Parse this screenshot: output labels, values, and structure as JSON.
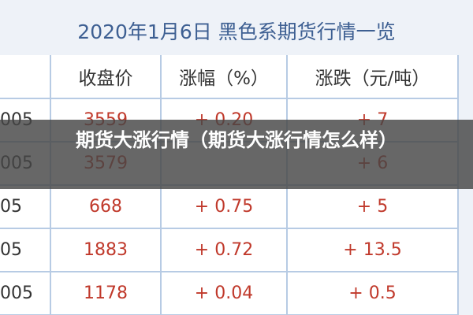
{
  "header": {
    "title": "2020年1月6日 黑色系期货行情一览"
  },
  "table": {
    "columns": [
      null,
      "收盘价",
      "涨幅（%）",
      "涨跌（元/吨）"
    ],
    "rows": [
      [
        "005",
        "3559",
        "+ 0.20",
        "+ 7"
      ],
      [
        "005",
        "3579",
        null,
        "+ 6"
      ],
      [
        "05",
        "668",
        "+ 0.75",
        "+ 5"
      ],
      [
        "05",
        "1883",
        "+ 0.72",
        "+ 13.5"
      ],
      [
        "005",
        "1178",
        "+ 0.04",
        "+ 0.5"
      ]
    ]
  },
  "overlay": {
    "title": "期货大涨行情（期货大涨行情怎么样）"
  }
}
